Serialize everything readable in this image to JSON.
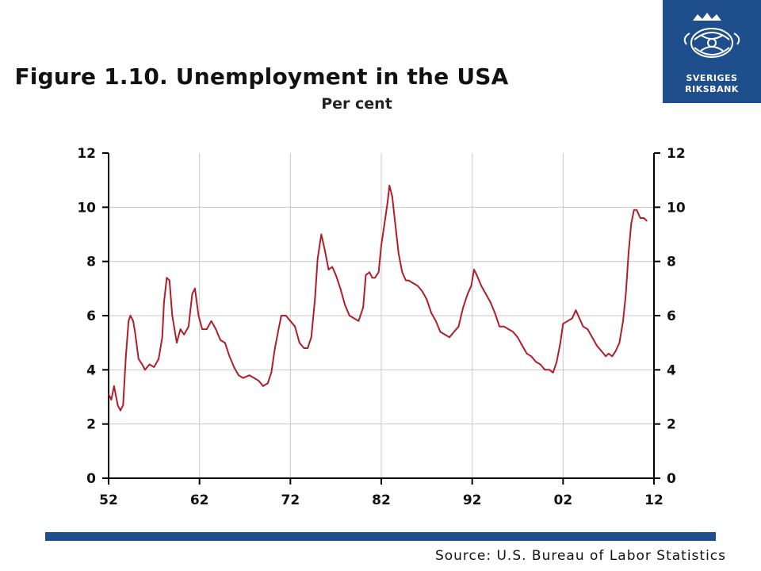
{
  "header": {
    "title": "Figure 1.10. Unemployment in the USA",
    "subtitle": "Per cent"
  },
  "logo": {
    "line1": "SVERIGES",
    "line2": "RIKSBANK",
    "color": "#1f4e8c"
  },
  "footer": {
    "source": "Source: U.S. Bureau of Labor Statistics"
  },
  "chart_data": {
    "type": "line",
    "title": "Figure 1.10. Unemployment in the USA",
    "subtitle": "Per cent",
    "xlabel": "",
    "ylabel": "",
    "xlim": [
      1952,
      2012
    ],
    "ylim": [
      0,
      12
    ],
    "x_ticks": [
      1952,
      1962,
      1972,
      1982,
      1992,
      2002,
      2012
    ],
    "x_tick_labels": [
      "52",
      "62",
      "72",
      "82",
      "92",
      "02",
      "12"
    ],
    "y_ticks": [
      0,
      2,
      4,
      6,
      8,
      10,
      12
    ],
    "y_tick_labels": [
      "0",
      "2",
      "4",
      "6",
      "8",
      "10",
      "12"
    ],
    "grid": true,
    "dual_y_axis": true,
    "line_color": "#b01e2a",
    "series": [
      {
        "x": [
          1952.0,
          1952.3,
          1952.6,
          1953.0,
          1953.3,
          1953.6,
          1953.9,
          1954.2,
          1954.4,
          1954.7,
          1954.9,
          1955.3,
          1955.7,
          1956.0,
          1956.5,
          1957.0,
          1957.5,
          1957.9,
          1958.1,
          1958.4,
          1958.7,
          1959.0,
          1959.5,
          1959.9,
          1960.3,
          1960.8,
          1961.2,
          1961.5,
          1961.9,
          1962.3,
          1962.8,
          1963.3,
          1963.8,
          1964.3,
          1964.8,
          1965.3,
          1965.8,
          1966.3,
          1966.8,
          1967.5,
          1968.0,
          1968.5,
          1969.0,
          1969.5,
          1969.9,
          1970.3,
          1970.7,
          1971.0,
          1971.5,
          1972.0,
          1972.5,
          1973.0,
          1973.5,
          1973.9,
          1974.3,
          1974.7,
          1975.0,
          1975.4,
          1975.8,
          1976.2,
          1976.6,
          1977.0,
          1977.5,
          1978.0,
          1978.5,
          1979.0,
          1979.5,
          1980.0,
          1980.3,
          1980.7,
          1981.0,
          1981.3,
          1981.7,
          1982.0,
          1982.4,
          1982.7,
          1982.9,
          1983.2,
          1983.5,
          1983.9,
          1984.3,
          1984.7,
          1985.0,
          1985.5,
          1986.0,
          1986.5,
          1987.0,
          1987.5,
          1988.0,
          1988.5,
          1989.0,
          1989.5,
          1990.0,
          1990.5,
          1991.0,
          1991.5,
          1991.9,
          1992.2,
          1992.5,
          1993.0,
          1993.5,
          1994.0,
          1994.5,
          1995.0,
          1995.5,
          1996.0,
          1996.5,
          1997.0,
          1997.5,
          1998.0,
          1998.5,
          1999.0,
          1999.5,
          2000.0,
          2000.5,
          2000.9,
          2001.3,
          2001.7,
          2002.0,
          2002.5,
          2003.0,
          2003.4,
          2003.8,
          2004.2,
          2004.7,
          2005.2,
          2005.7,
          2006.2,
          2006.7,
          2007.0,
          2007.4,
          2007.8,
          2008.2,
          2008.6,
          2008.9,
          2009.2,
          2009.5,
          2009.8,
          2010.1,
          2010.5,
          2010.9,
          2011.2
        ],
        "y": [
          3.1,
          2.9,
          3.4,
          2.7,
          2.5,
          2.7,
          4.5,
          5.8,
          6.0,
          5.8,
          5.4,
          4.4,
          4.2,
          4.0,
          4.2,
          4.1,
          4.4,
          5.2,
          6.5,
          7.4,
          7.3,
          6.0,
          5.0,
          5.5,
          5.3,
          5.6,
          6.8,
          7.0,
          6.0,
          5.5,
          5.5,
          5.8,
          5.5,
          5.1,
          5.0,
          4.5,
          4.1,
          3.8,
          3.7,
          3.8,
          3.7,
          3.6,
          3.4,
          3.5,
          3.9,
          4.8,
          5.5,
          6.0,
          6.0,
          5.8,
          5.6,
          5.0,
          4.8,
          4.8,
          5.2,
          6.6,
          8.1,
          9.0,
          8.4,
          7.7,
          7.8,
          7.5,
          7.0,
          6.4,
          6.0,
          5.9,
          5.8,
          6.3,
          7.5,
          7.6,
          7.4,
          7.4,
          7.6,
          8.6,
          9.5,
          10.2,
          10.8,
          10.4,
          9.5,
          8.3,
          7.6,
          7.3,
          7.3,
          7.2,
          7.1,
          6.9,
          6.6,
          6.1,
          5.8,
          5.4,
          5.3,
          5.2,
          5.4,
          5.6,
          6.3,
          6.8,
          7.1,
          7.7,
          7.5,
          7.1,
          6.8,
          6.5,
          6.1,
          5.6,
          5.6,
          5.5,
          5.4,
          5.2,
          4.9,
          4.6,
          4.5,
          4.3,
          4.2,
          4.0,
          4.0,
          3.9,
          4.3,
          5.0,
          5.7,
          5.8,
          5.9,
          6.2,
          5.9,
          5.6,
          5.5,
          5.2,
          4.9,
          4.7,
          4.5,
          4.6,
          4.5,
          4.7,
          5.0,
          5.8,
          6.8,
          8.3,
          9.4,
          9.9,
          9.9,
          9.6,
          9.6,
          9.5
        ]
      }
    ]
  }
}
